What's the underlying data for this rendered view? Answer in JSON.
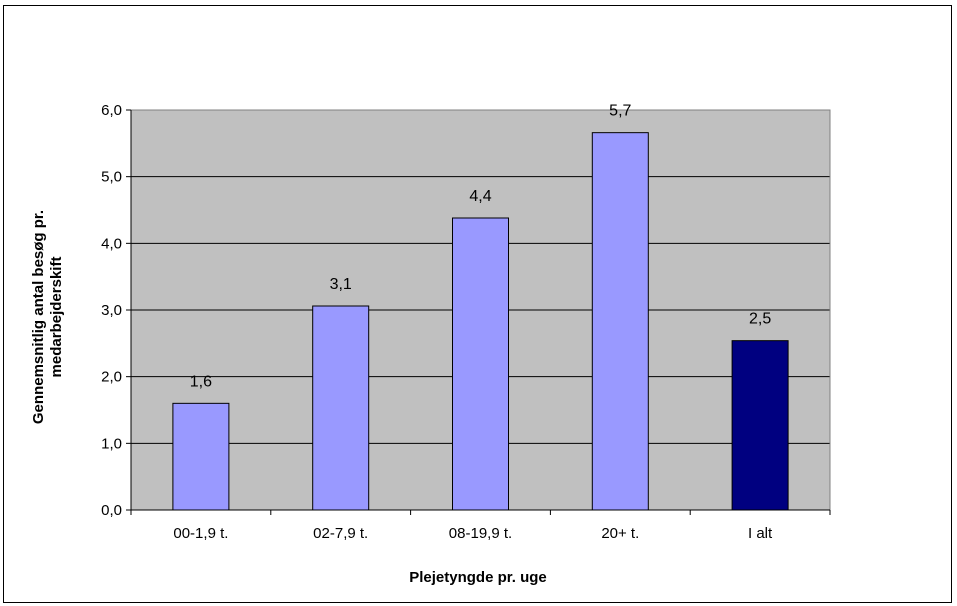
{
  "chart_data": {
    "type": "bar",
    "title": "",
    "xlabel": "Plejetyngde pr. uge",
    "ylabel_lines": [
      "Gennemsnitlig antal besøg pr.",
      "medarbejderskift"
    ],
    "categories": [
      "00-1,9 t.",
      "02-7,9 t.",
      "08-19,9 t.",
      "20+ t.",
      "I alt"
    ],
    "values": [
      1.6,
      3.06,
      4.38,
      5.66,
      2.54
    ],
    "value_labels": [
      "1,6",
      "3,1",
      "4,4",
      "5,7",
      "2,5"
    ],
    "ylim": [
      0,
      6
    ],
    "yticks": [
      0,
      1,
      2,
      3,
      4,
      5,
      6
    ],
    "ytick_labels": [
      "0,0",
      "1,0",
      "2,0",
      "3,0",
      "4,0",
      "5,0",
      "6,0"
    ],
    "grid": true,
    "legend": "none",
    "colors": {
      "plot_background": "#c0c0c0",
      "bar": "#9999ff",
      "bar_total": "#000080",
      "gridline": "#000000"
    }
  }
}
